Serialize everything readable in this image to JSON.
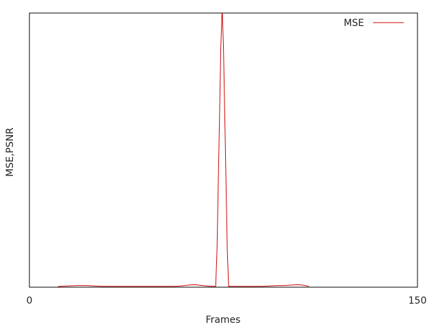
{
  "chart_data": {
    "type": "line",
    "title": "",
    "xlabel": "Frames",
    "ylabel": "MSE,PSNR",
    "xlim": [
      0,
      150
    ],
    "ylim": [
      0,
      100
    ],
    "x_ticks": [
      0,
      150
    ],
    "x_tick_labels": [
      "0",
      "150"
    ],
    "grid": false,
    "legend_position": "top-right",
    "series": [
      {
        "name": "MSE",
        "color": "#cc0000",
        "x": [
          11,
          12,
          14,
          16,
          18,
          20,
          22,
          24,
          26,
          28,
          30,
          32,
          34,
          36,
          38,
          40,
          42,
          44,
          46,
          48,
          50,
          52,
          54,
          56,
          58,
          60,
          62,
          64,
          66,
          68,
          70,
          72,
          72.5,
          73,
          73.5,
          74,
          74.5,
          75,
          75.5,
          76,
          76.5,
          77,
          78,
          80,
          82,
          84,
          86,
          88,
          90,
          92,
          94,
          96,
          98,
          100,
          102,
          104,
          106,
          108
        ],
        "y": [
          0.2,
          0.3,
          0.4,
          0.5,
          0.6,
          0.6,
          0.6,
          0.5,
          0.4,
          0.3,
          0.3,
          0.3,
          0.3,
          0.3,
          0.3,
          0.3,
          0.3,
          0.3,
          0.3,
          0.3,
          0.3,
          0.3,
          0.3,
          0.3,
          0.4,
          0.6,
          0.8,
          0.9,
          0.7,
          0.5,
          0.3,
          0.3,
          13,
          38,
          63,
          88,
          102,
          88,
          63,
          38,
          13,
          0.3,
          0.3,
          0.3,
          0.3,
          0.3,
          0.3,
          0.3,
          0.3,
          0.4,
          0.5,
          0.6,
          0.6,
          0.7,
          0.8,
          0.9,
          0.7,
          0.3
        ]
      }
    ]
  }
}
